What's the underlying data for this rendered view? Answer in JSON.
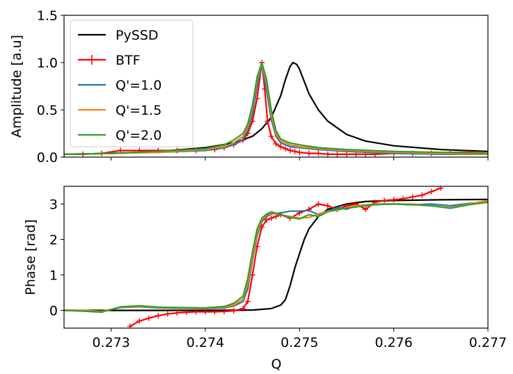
{
  "chart_data": [
    {
      "type": "line",
      "title": "",
      "xlabel": "",
      "ylabel": "Amplitude [a.u]",
      "xlim": [
        0.2725,
        0.277
      ],
      "ylim": [
        0.0,
        1.5
      ],
      "xticks": [
        0.273,
        0.274,
        0.275,
        0.276,
        0.277
      ],
      "yticks": [
        0.0,
        0.5,
        1.0,
        1.5
      ],
      "ytick_labels": [
        "0.0",
        "0.5",
        "1.0",
        "1.5"
      ],
      "show_xtick_labels": false,
      "grid": false,
      "legend_position": "top-left",
      "series": [
        {
          "name": "PySSD",
          "color": "#000000",
          "markers": false,
          "x": [
            0.2725,
            0.273,
            0.2735,
            0.274,
            0.2743,
            0.2745,
            0.2746,
            0.2747,
            0.2748,
            0.27485,
            0.2749,
            0.27493,
            0.27497,
            0.275,
            0.27505,
            0.2751,
            0.2752,
            0.2753,
            0.2755,
            0.2757,
            0.276,
            0.2765,
            0.277
          ],
          "y": [
            0.03,
            0.04,
            0.06,
            0.1,
            0.15,
            0.22,
            0.3,
            0.42,
            0.65,
            0.82,
            0.96,
            1.0,
            0.98,
            0.93,
            0.8,
            0.67,
            0.5,
            0.38,
            0.24,
            0.17,
            0.12,
            0.08,
            0.06
          ]
        },
        {
          "name": "BTF",
          "color": "#ff0000",
          "markers": true,
          "x": [
            0.2725,
            0.2727,
            0.2729,
            0.2731,
            0.2733,
            0.2735,
            0.2737,
            0.2739,
            0.2741,
            0.2742,
            0.2743,
            0.2744,
            0.27445,
            0.2745,
            0.27455,
            0.2746,
            0.27463,
            0.27466,
            0.2747,
            0.27475,
            0.2748,
            0.27485,
            0.2749,
            0.27495,
            0.275,
            0.2751,
            0.2752,
            0.2753,
            0.2754,
            0.2755,
            0.2756,
            0.2757,
            0.2758,
            0.276,
            0.2762,
            0.2764,
            0.2766,
            0.2768,
            0.277
          ],
          "y": [
            0.03,
            0.03,
            0.04,
            0.07,
            0.07,
            0.07,
            0.07,
            0.07,
            0.08,
            0.1,
            0.13,
            0.18,
            0.25,
            0.38,
            0.62,
            1.0,
            0.72,
            0.38,
            0.22,
            0.14,
            0.11,
            0.09,
            0.07,
            0.06,
            0.05,
            0.04,
            0.04,
            0.03,
            0.03,
            0.03,
            0.03,
            0.03,
            0.03,
            0.04,
            0.04,
            0.04,
            0.05,
            0.05,
            0.04
          ]
        },
        {
          "name": "Q'=1.0",
          "color": "#1f77b4",
          "markers": false,
          "x": [
            0.2725,
            0.273,
            0.2735,
            0.274,
            0.2742,
            0.2743,
            0.2744,
            0.27445,
            0.2745,
            0.27455,
            0.2746,
            0.27465,
            0.2747,
            0.27475,
            0.2748,
            0.2749,
            0.275,
            0.2752,
            0.2755,
            0.276,
            0.2765,
            0.277
          ],
          "y": [
            0.03,
            0.04,
            0.05,
            0.07,
            0.1,
            0.13,
            0.19,
            0.28,
            0.45,
            0.75,
            0.98,
            0.7,
            0.4,
            0.22,
            0.15,
            0.11,
            0.1,
            0.08,
            0.06,
            0.04,
            0.03,
            0.03
          ]
        },
        {
          "name": "Q'=1.5",
          "color": "#ff7f0e",
          "markers": false,
          "x": [
            0.2725,
            0.273,
            0.2735,
            0.274,
            0.2742,
            0.2743,
            0.2744,
            0.27445,
            0.2745,
            0.27455,
            0.2746,
            0.27465,
            0.2747,
            0.27475,
            0.2748,
            0.2749,
            0.275,
            0.2752,
            0.2755,
            0.276,
            0.2765,
            0.277
          ],
          "y": [
            0.03,
            0.04,
            0.05,
            0.08,
            0.11,
            0.15,
            0.22,
            0.32,
            0.52,
            0.82,
            0.99,
            0.78,
            0.45,
            0.25,
            0.17,
            0.13,
            0.11,
            0.09,
            0.07,
            0.05,
            0.04,
            0.03
          ]
        },
        {
          "name": "Q'=2.0",
          "color": "#2ca02c",
          "markers": false,
          "x": [
            0.2725,
            0.273,
            0.2735,
            0.274,
            0.2742,
            0.2743,
            0.2744,
            0.27445,
            0.2745,
            0.27455,
            0.2746,
            0.27465,
            0.2747,
            0.27475,
            0.2748,
            0.2749,
            0.275,
            0.2752,
            0.2755,
            0.276,
            0.2765,
            0.277
          ],
          "y": [
            0.03,
            0.04,
            0.06,
            0.09,
            0.13,
            0.18,
            0.25,
            0.35,
            0.55,
            0.85,
            1.0,
            0.82,
            0.5,
            0.28,
            0.19,
            0.15,
            0.13,
            0.1,
            0.08,
            0.06,
            0.05,
            0.04
          ]
        }
      ]
    },
    {
      "type": "line",
      "title": "",
      "xlabel": "Q",
      "ylabel": "Phase [rad]",
      "xlim": [
        0.2725,
        0.277
      ],
      "ylim": [
        -0.5,
        3.5
      ],
      "xticks": [
        0.273,
        0.274,
        0.275,
        0.276,
        0.277
      ],
      "xtick_labels": [
        "0.273",
        "0.274",
        "0.275",
        "0.276",
        "0.277"
      ],
      "yticks": [
        0,
        1,
        2,
        3
      ],
      "ytick_labels": [
        "0",
        "1",
        "2",
        "3"
      ],
      "grid": false,
      "series": [
        {
          "name": "PySSD",
          "color": "#000000",
          "markers": false,
          "x": [
            0.2725,
            0.273,
            0.2735,
            0.274,
            0.2745,
            0.2747,
            0.2748,
            0.27485,
            0.2749,
            0.27495,
            0.275,
            0.27505,
            0.2751,
            0.2752,
            0.2753,
            0.2755,
            0.2757,
            0.276,
            0.2765,
            0.277
          ],
          "y": [
            0.0,
            0.0,
            0.0,
            0.0,
            0.01,
            0.05,
            0.15,
            0.3,
            0.7,
            1.2,
            1.6,
            2.0,
            2.3,
            2.65,
            2.85,
            3.0,
            3.07,
            3.1,
            3.12,
            3.13
          ]
        },
        {
          "name": "BTF",
          "color": "#ff0000",
          "markers": true,
          "x": [
            0.2732,
            0.2733,
            0.2734,
            0.2735,
            0.2736,
            0.2737,
            0.2738,
            0.2739,
            0.274,
            0.2741,
            0.2742,
            0.2743,
            0.2744,
            0.27445,
            0.2745,
            0.27455,
            0.2746,
            0.27465,
            0.2747,
            0.27475,
            0.2748,
            0.2749,
            0.275,
            0.2751,
            0.2752,
            0.2753,
            0.2754,
            0.2755,
            0.2756,
            0.2757,
            0.2758,
            0.2759,
            0.276,
            0.2761,
            0.2762,
            0.2763,
            0.2764,
            0.2765
          ],
          "y": [
            -0.45,
            -0.3,
            -0.22,
            -0.15,
            -0.1,
            -0.07,
            -0.05,
            -0.04,
            -0.04,
            -0.04,
            -0.03,
            -0.01,
            0.05,
            0.25,
            1.0,
            1.8,
            2.35,
            2.55,
            2.6,
            2.65,
            2.7,
            2.6,
            2.75,
            2.85,
            3.0,
            2.95,
            2.85,
            2.95,
            3.0,
            2.85,
            3.05,
            3.1,
            3.12,
            3.15,
            3.2,
            3.25,
            3.35,
            3.45
          ]
        },
        {
          "name": "Q'=1.0",
          "color": "#1f77b4",
          "markers": false,
          "x": [
            0.2725,
            0.2727,
            0.2729,
            0.2731,
            0.2733,
            0.2735,
            0.2737,
            0.274,
            0.2742,
            0.2743,
            0.2744,
            0.27445,
            0.2745,
            0.27455,
            0.2746,
            0.27465,
            0.2747,
            0.2748,
            0.2749,
            0.275,
            0.2751,
            0.2752,
            0.2753,
            0.2754,
            0.2755,
            0.2756,
            0.2758,
            0.276,
            0.2762,
            0.2764,
            0.2766,
            0.2768,
            0.277
          ],
          "y": [
            0.0,
            0.0,
            -0.03,
            0.08,
            0.1,
            0.07,
            0.06,
            0.05,
            0.07,
            0.12,
            0.25,
            0.6,
            1.4,
            2.1,
            2.5,
            2.65,
            2.72,
            2.75,
            2.8,
            2.8,
            2.82,
            2.7,
            2.8,
            2.9,
            2.85,
            2.95,
            3.0,
            3.0,
            2.98,
            3.0,
            2.95,
            3.02,
            3.05
          ]
        },
        {
          "name": "Q'=1.5",
          "color": "#ff7f0e",
          "markers": false,
          "x": [
            0.2725,
            0.2727,
            0.2729,
            0.2731,
            0.2733,
            0.2735,
            0.2737,
            0.274,
            0.2742,
            0.2743,
            0.2744,
            0.27445,
            0.2745,
            0.27455,
            0.2746,
            0.27465,
            0.2747,
            0.2748,
            0.2749,
            0.275,
            0.2751,
            0.2752,
            0.2753,
            0.2754,
            0.2755,
            0.2756,
            0.2758,
            0.276,
            0.2762,
            0.2764,
            0.2766,
            0.2768,
            0.277
          ],
          "y": [
            0.0,
            0.0,
            -0.03,
            0.09,
            0.11,
            0.08,
            0.07,
            0.06,
            0.09,
            0.15,
            0.32,
            0.75,
            1.5,
            2.2,
            2.55,
            2.7,
            2.75,
            2.7,
            2.65,
            2.6,
            2.62,
            2.72,
            2.8,
            2.82,
            2.9,
            2.95,
            3.0,
            3.0,
            3.0,
            2.95,
            2.9,
            3.0,
            3.1
          ]
        },
        {
          "name": "Q'=2.0",
          "color": "#2ca02c",
          "markers": false,
          "x": [
            0.2725,
            0.2727,
            0.2729,
            0.2731,
            0.2733,
            0.2735,
            0.2737,
            0.274,
            0.2742,
            0.2743,
            0.2744,
            0.27445,
            0.2745,
            0.27455,
            0.2746,
            0.27465,
            0.2747,
            0.2748,
            0.2749,
            0.275,
            0.2751,
            0.2752,
            0.2753,
            0.2754,
            0.2755,
            0.2756,
            0.2758,
            0.276,
            0.2762,
            0.2764,
            0.2766,
            0.2768,
            0.277
          ],
          "y": [
            0.0,
            -0.02,
            -0.05,
            0.1,
            0.13,
            0.09,
            0.08,
            0.07,
            0.11,
            0.2,
            0.4,
            0.9,
            1.65,
            2.3,
            2.6,
            2.72,
            2.78,
            2.7,
            2.62,
            2.58,
            2.7,
            2.65,
            2.78,
            2.85,
            2.88,
            2.92,
            2.98,
            3.0,
            2.98,
            2.95,
            2.88,
            2.98,
            3.05
          ]
        }
      ]
    }
  ]
}
